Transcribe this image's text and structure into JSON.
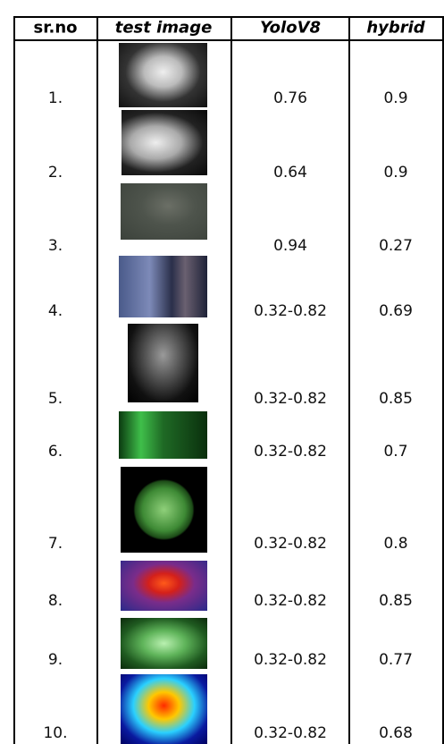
{
  "table": {
    "header": [
      "sr.no",
      "test image",
      "YoloV8",
      "hybrid"
    ],
    "rows": [
      [
        "1.",
        "0.76",
        "0.9"
      ],
      [
        "2.",
        "0.64",
        "0.9"
      ],
      [
        "3.",
        "0.94",
        "0.27"
      ],
      [
        "4.",
        "0.32-0.82",
        "0.69"
      ],
      [
        "5.",
        "0.32-0.82",
        "0.85"
      ],
      [
        "6.",
        "0.32-0.82",
        "0.7"
      ],
      [
        "7.",
        "0.32-0.82",
        "0.8"
      ],
      [
        "8.",
        "0.32-0.82",
        "0.85"
      ],
      [
        "9.",
        "0.32-0.82",
        "0.77"
      ],
      [
        "10.",
        "0.32-0.82",
        "0.68"
      ]
    ]
  }
}
